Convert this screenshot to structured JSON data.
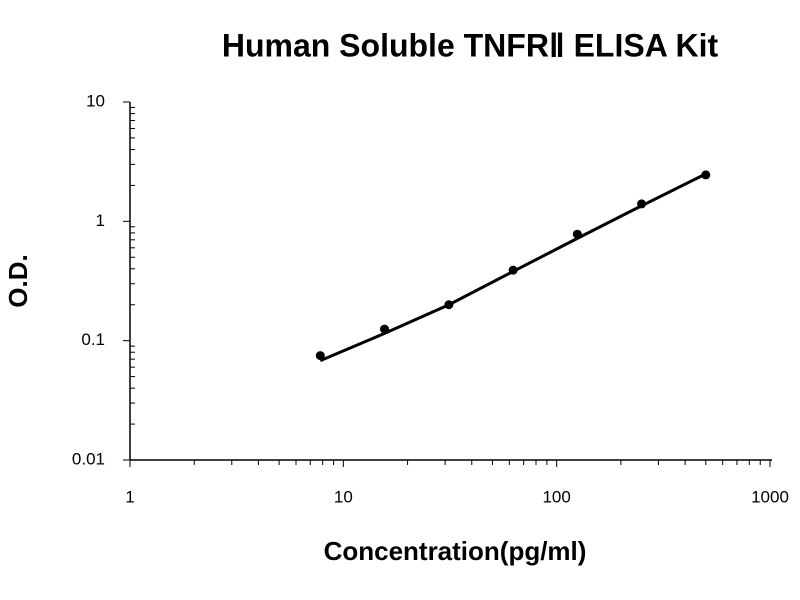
{
  "chart_data": {
    "type": "scatter",
    "title": "Human Soluble TNFRⅡ ELISA Kit",
    "x_label": "Concentration(pg/ml)",
    "y_label": "O.D.",
    "xscale": "log",
    "yscale": "log",
    "xlim": [
      1,
      1000
    ],
    "ylim": [
      0.01,
      10
    ],
    "xticks": [
      1,
      10,
      100,
      1000
    ],
    "yticks": [
      0.01,
      0.1,
      1,
      10
    ],
    "series": [
      {
        "color": "#000000",
        "style": "markers",
        "x": [
          7.8,
          15.6,
          31.25,
          62.5,
          125,
          250,
          500
        ],
        "values": [
          0.075,
          0.125,
          0.2,
          0.39,
          0.78,
          1.4,
          2.45
        ]
      },
      {
        "color": "#000000",
        "style": "line",
        "x": [
          7.8,
          15.6,
          31.25,
          62.5,
          125,
          250,
          500
        ],
        "values": [
          0.068,
          0.115,
          0.2,
          0.38,
          0.72,
          1.35,
          2.5
        ]
      }
    ]
  }
}
